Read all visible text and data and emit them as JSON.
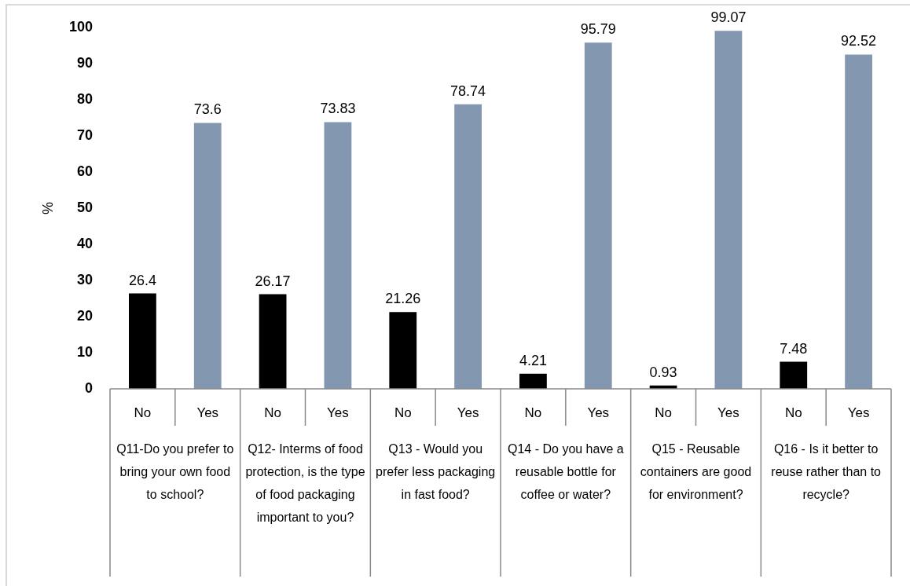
{
  "chart_data": {
    "type": "bar",
    "categories": [
      "Q11-Do you prefer to bring your own food to school?",
      "Q12- Interms of food protection, is the type of food packaging important to you?",
      "Q13 - Would you prefer less packaging in fast food?",
      "Q14 - Do you have a reusable bottle for coffee or water?",
      "Q15 - Reusable containers are good for environment?",
      "Q16 - Is it better to reuse rather than to recycle?"
    ],
    "series": [
      {
        "name": "No",
        "color": "#000000",
        "values": [
          26.4,
          26.17,
          21.26,
          4.21,
          0.93,
          7.48
        ]
      },
      {
        "name": "Yes",
        "color": "#8497b0",
        "values": [
          73.6,
          73.83,
          78.74,
          95.79,
          99.07,
          92.52
        ]
      }
    ],
    "ylabel": "%",
    "ylim": [
      0,
      100
    ],
    "yticks": [
      0,
      10,
      20,
      30,
      40,
      50,
      60,
      70,
      80,
      90,
      100
    ],
    "data_labels": true
  }
}
